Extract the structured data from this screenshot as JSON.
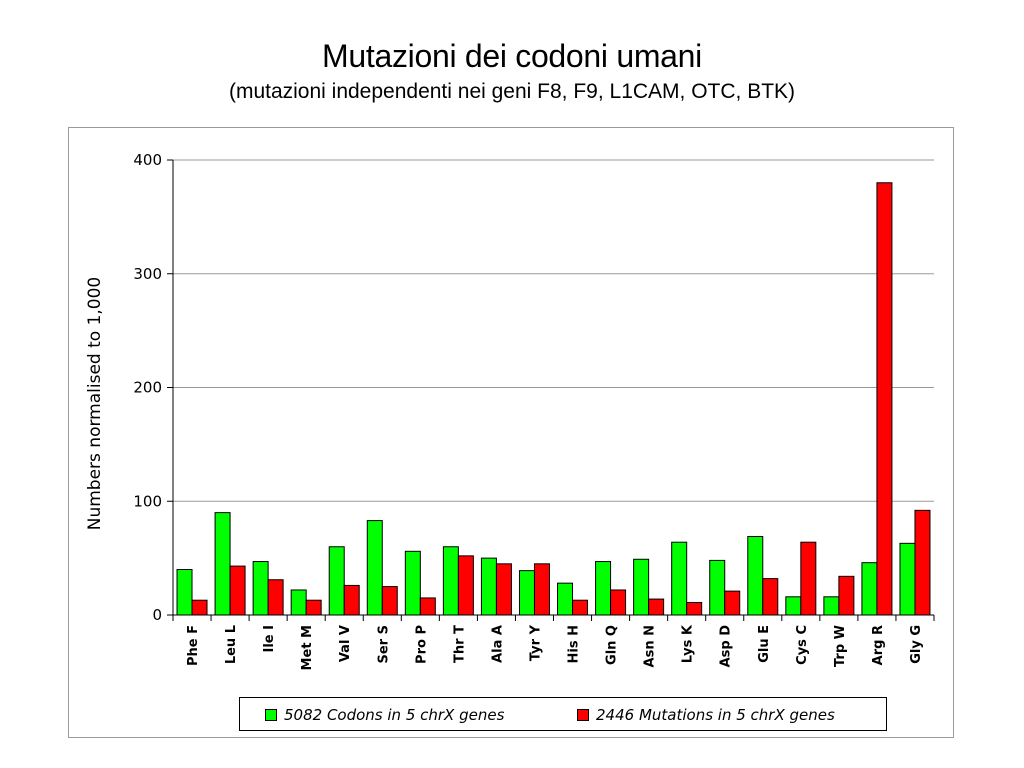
{
  "title": "Mutazioni dei codoni umani",
  "subtitle": "(mutazioni independenti nei geni F8, F9, L1CAM, OTC, BTK)",
  "chart_data": {
    "type": "bar",
    "categories": [
      "Phe F",
      "Leu L",
      "Ile I",
      "Met M",
      "Val V",
      "Ser S",
      "Pro P",
      "Thr T",
      "Ala A",
      "Tyr Y",
      "His H",
      "Gln Q",
      "Asn N",
      "Lys K",
      "Asp D",
      "Glu E",
      "Cys C",
      "Trp W",
      "Arg R",
      "Gly G"
    ],
    "series": [
      {
        "name": "5082 Codons in 5 chrX genes",
        "color": "#00ff00",
        "values": [
          40,
          90,
          47,
          22,
          60,
          83,
          56,
          60,
          50,
          39,
          28,
          47,
          49,
          64,
          48,
          69,
          16,
          16,
          46,
          63
        ]
      },
      {
        "name": "2446 Mutations in 5 chrX genes",
        "color": "#ff0000",
        "values": [
          13,
          43,
          31,
          13,
          26,
          25,
          15,
          52,
          45,
          45,
          13,
          22,
          14,
          11,
          21,
          32,
          64,
          34,
          380,
          92
        ]
      }
    ],
    "title": "",
    "xlabel": "",
    "ylabel": "Numbers normalised to 1,000",
    "ylim": [
      0,
      400
    ],
    "yticks": [
      0,
      100,
      200,
      300,
      400
    ],
    "grid": true,
    "legend": "bottom"
  }
}
